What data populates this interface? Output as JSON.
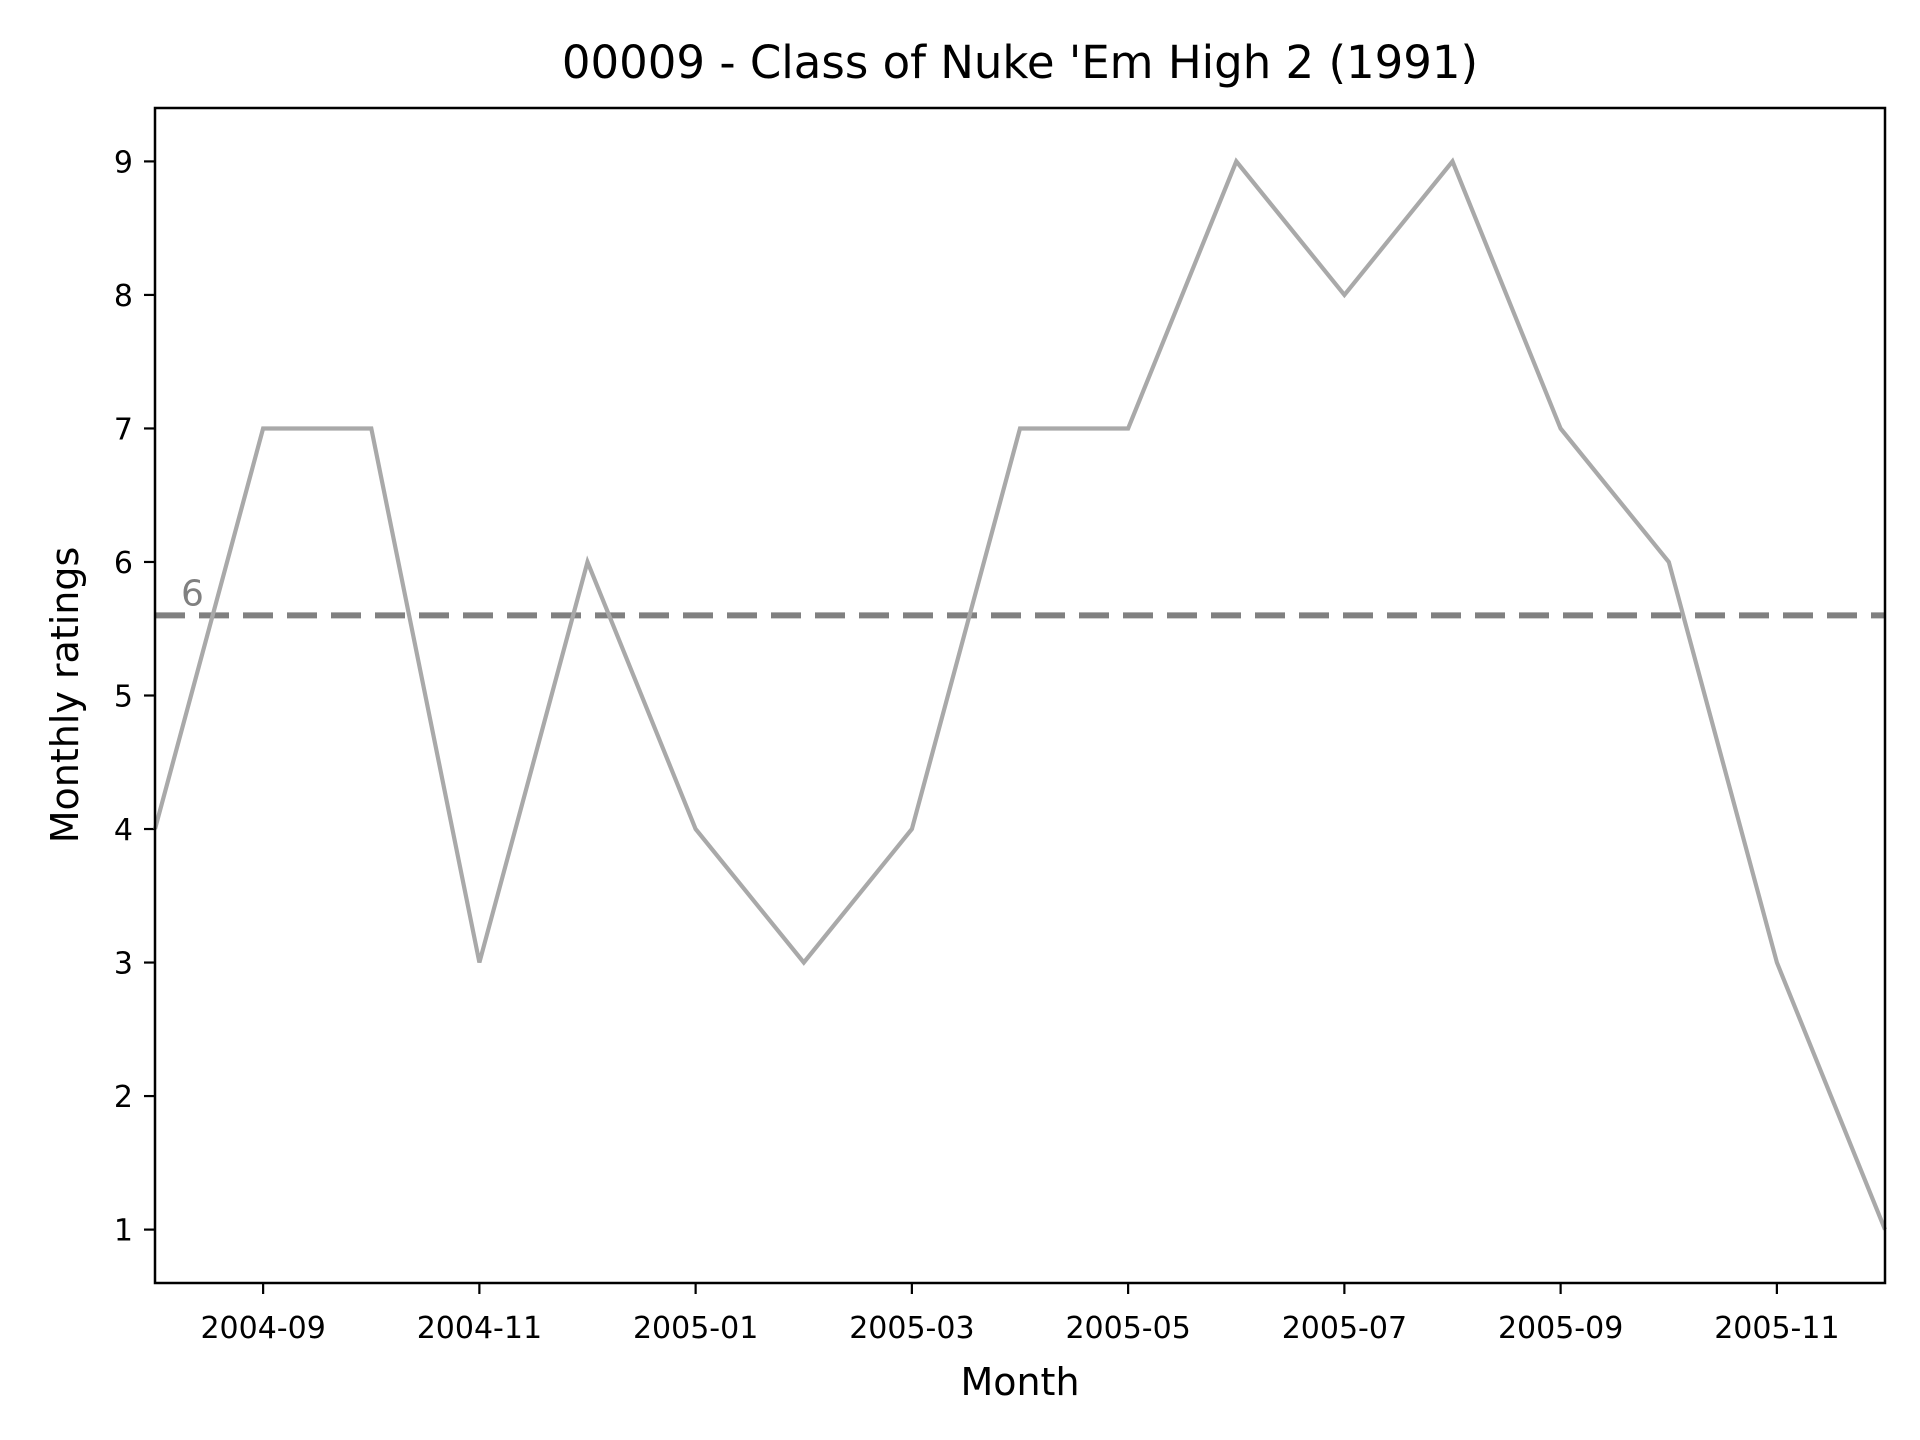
{
  "chart_data": {
    "type": "line",
    "title": "00009 - Class of Nuke 'Em High 2 (1991)",
    "xlabel": "Month",
    "ylabel": "Monthly ratings",
    "x": [
      "2004-08",
      "2004-09",
      "2004-10",
      "2004-11",
      "2004-12",
      "2005-01",
      "2005-02",
      "2005-03",
      "2005-04",
      "2005-05",
      "2005-06",
      "2005-07",
      "2005-08",
      "2005-09",
      "2005-10",
      "2005-11",
      "2005-12"
    ],
    "series": [
      {
        "values": [
          4,
          7,
          7,
          3,
          6,
          4,
          3,
          4,
          7,
          7,
          9,
          8,
          9,
          7,
          6,
          3,
          1
        ],
        "color": "#a9a9a9"
      }
    ],
    "reference_line": {
      "value": 5.6,
      "label": "6",
      "style": "dashed",
      "color": "#808080"
    },
    "xlim": [
      "2004-08",
      "2005-12"
    ],
    "ylim": [
      0.6,
      9.4
    ],
    "x_ticks": [
      "2004-09",
      "2004-11",
      "2005-01",
      "2005-03",
      "2005-05",
      "2005-07",
      "2005-09",
      "2005-11"
    ],
    "y_ticks": [
      1,
      2,
      3,
      4,
      5,
      6,
      7,
      8,
      9
    ],
    "grid": false,
    "legend": false
  }
}
